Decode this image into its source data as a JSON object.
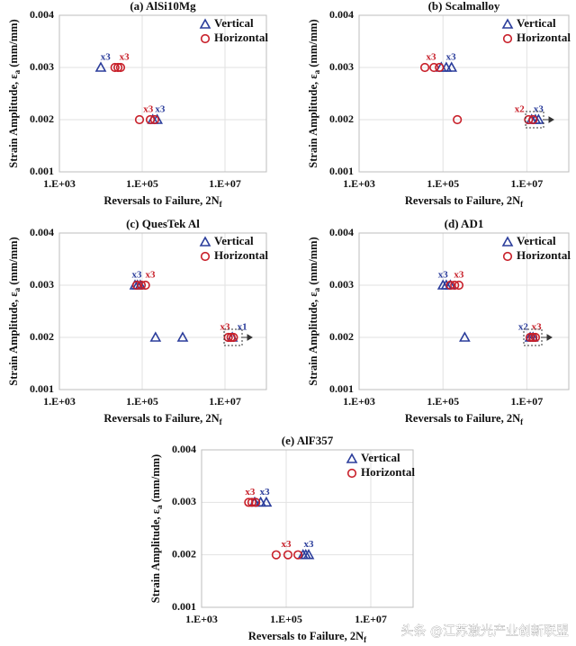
{
  "chart_data": [
    {
      "type": "scatter",
      "title": "(a) AlSi10Mg",
      "xlabel": {
        "text": "Reversals to Failure, 2N",
        "subscript": "f"
      },
      "ylabel": {
        "text": "Strain Amplitude, ε",
        "subscript": "a",
        "after": " (mm/mm)"
      },
      "xscale": "log",
      "xlim": [
        1000,
        100000000
      ],
      "xticks": [
        {
          "value": 1000,
          "label": "1.E+03"
        },
        {
          "value": 100000,
          "label": "1.E+05"
        },
        {
          "value": 10000000,
          "label": "1.E+07"
        }
      ],
      "ylim": [
        0.001,
        0.004
      ],
      "yticks": [
        0.001,
        0.002,
        0.003,
        0.004
      ],
      "grid": true,
      "legend": "upper right",
      "series": [
        {
          "name": "Vertical",
          "color": "#2b3d9b",
          "marker": "triangle",
          "x": [
            10000,
            180000,
            230000
          ],
          "values": [
            0.003,
            0.002,
            0.002
          ]
        },
        {
          "name": "Horizontal",
          "color": "#c8202a",
          "marker": "circle",
          "x": [
            22000,
            26000,
            30000,
            86000,
            157000,
            200000
          ],
          "values": [
            0.003,
            0.003,
            0.003,
            0.002,
            0.002,
            0.002
          ]
        }
      ],
      "annotations": [
        {
          "text": "x3",
          "x": 13000,
          "y": 0.003,
          "color": "#2b3d9b"
        },
        {
          "text": "x3",
          "x": 37000,
          "y": 0.003,
          "color": "#c8202a"
        },
        {
          "text": "x3",
          "x": 140000,
          "y": 0.002,
          "color": "#c8202a"
        },
        {
          "text": "x3",
          "x": 270000,
          "y": 0.002,
          "color": "#2b3d9b"
        }
      ]
    },
    {
      "type": "scatter",
      "title": "(b) Scalmalloy",
      "xlabel": {
        "text": "Reversals to Failure, 2N",
        "subscript": "f"
      },
      "ylabel": {
        "text": "Strain Amplitude, ε",
        "subscript": "a",
        "after": " (mm/mm)"
      },
      "xscale": "log",
      "xlim": [
        1000,
        100000000
      ],
      "xticks": [
        {
          "value": 1000,
          "label": "1.E+03"
        },
        {
          "value": 100000,
          "label": "1.E+05"
        },
        {
          "value": 10000000,
          "label": "1.E+07"
        }
      ],
      "ylim": [
        0.001,
        0.004
      ],
      "yticks": [
        0.001,
        0.002,
        0.003,
        0.004
      ],
      "grid": true,
      "legend": "upper right",
      "series": [
        {
          "name": "Vertical",
          "color": "#2b3d9b",
          "marker": "triangle",
          "x": [
            91000,
            120000,
            160000,
            13000000,
            16000000,
            19000000
          ],
          "values": [
            0.003,
            0.003,
            0.003,
            0.002,
            0.002,
            0.002
          ]
        },
        {
          "name": "Horizontal",
          "color": "#c8202a",
          "marker": "circle",
          "x": [
            37000,
            61000,
            82000,
            220000,
            11000000,
            14000000
          ],
          "values": [
            0.003,
            0.003,
            0.003,
            0.002,
            0.002,
            0.002
          ]
        }
      ],
      "annotations": [
        {
          "text": "x3",
          "x": 52000,
          "y": 0.003,
          "color": "#c8202a"
        },
        {
          "text": "x3",
          "x": 155000,
          "y": 0.003,
          "color": "#2b3d9b"
        },
        {
          "text": "x2",
          "x": 6700000,
          "y": 0.002,
          "color": "#c8202a"
        },
        {
          "text": "x3",
          "x": 19000000,
          "y": 0.002,
          "color": "#2b3d9b"
        }
      ]
    },
    {
      "type": "scatter",
      "title": "(c) QuesTek Al",
      "xlabel": {
        "text": "Reversals to Failure, 2N",
        "subscript": "f"
      },
      "ylabel": {
        "text": "Strain Amplitude, ε",
        "subscript": "a",
        "after": " (mm/mm)"
      },
      "xscale": "log",
      "xlim": [
        1000,
        100000000
      ],
      "xticks": [
        {
          "value": 1000,
          "label": "1.E+03"
        },
        {
          "value": 100000,
          "label": "1.E+05"
        },
        {
          "value": 10000000,
          "label": "1.E+07"
        }
      ],
      "ylim": [
        0.001,
        0.004
      ],
      "yticks": [
        0.001,
        0.002,
        0.003,
        0.004
      ],
      "grid": true,
      "legend": "upper right",
      "series": [
        {
          "name": "Vertical",
          "color": "#2b3d9b",
          "marker": "triangle",
          "x": [
            67000,
            77000,
            90000,
            210000,
            950000,
            15000000
          ],
          "values": [
            0.003,
            0.003,
            0.003,
            0.002,
            0.002,
            0.002
          ]
        },
        {
          "name": "Horizontal",
          "color": "#c8202a",
          "marker": "circle",
          "x": [
            74000,
            95000,
            120000,
            12000000,
            14000000,
            16000000
          ],
          "values": [
            0.003,
            0.003,
            0.003,
            0.002,
            0.002,
            0.002
          ]
        }
      ],
      "annotations": [
        {
          "text": "x3",
          "x": 74000,
          "y": 0.003,
          "color": "#2b3d9b"
        },
        {
          "text": "x3",
          "x": 157000,
          "y": 0.003,
          "color": "#c8202a"
        },
        {
          "text": "x3",
          "x": 10000000,
          "y": 0.002,
          "color": "#c8202a"
        },
        {
          "text": "x1",
          "x": 26000000,
          "y": 0.002,
          "color": "#2b3d9b"
        }
      ]
    },
    {
      "type": "scatter",
      "title": "(d) AD1",
      "xlabel": {
        "text": "Reversals to Failure, 2N",
        "subscript": "f"
      },
      "ylabel": {
        "text": "Strain Amplitude, ε",
        "subscript": "a",
        "after": " (mm/mm)"
      },
      "xscale": "log",
      "xlim": [
        1000,
        100000000
      ],
      "xticks": [
        {
          "value": 1000,
          "label": "1.E+03"
        },
        {
          "value": 100000,
          "label": "1.E+05"
        },
        {
          "value": 10000000,
          "label": "1.E+07"
        }
      ],
      "ylim": [
        0.001,
        0.004
      ],
      "yticks": [
        0.001,
        0.002,
        0.003,
        0.004
      ],
      "grid": true,
      "legend": "upper right",
      "series": [
        {
          "name": "Vertical",
          "color": "#2b3d9b",
          "marker": "triangle",
          "x": [
            100000,
            120000,
            150000,
            330000,
            12000000,
            14000000
          ],
          "values": [
            0.003,
            0.003,
            0.003,
            0.002,
            0.002,
            0.002
          ]
        },
        {
          "name": "Horizontal",
          "color": "#c8202a",
          "marker": "circle",
          "x": [
            150000,
            190000,
            240000,
            12000000,
            14000000,
            16000000
          ],
          "values": [
            0.003,
            0.003,
            0.003,
            0.002,
            0.002,
            0.002
          ]
        }
      ],
      "annotations": [
        {
          "text": "x3",
          "x": 100000,
          "y": 0.003,
          "color": "#2b3d9b"
        },
        {
          "text": "x3",
          "x": 240000,
          "y": 0.003,
          "color": "#c8202a"
        },
        {
          "text": "x2",
          "x": 8200000,
          "y": 0.002,
          "color": "#2b3d9b"
        },
        {
          "text": "x3",
          "x": 17000000,
          "y": 0.002,
          "color": "#c8202a"
        }
      ]
    },
    {
      "type": "scatter",
      "title": "(e) AlF357",
      "xlabel": {
        "text": "Reversals to Failure, 2N",
        "subscript": "f"
      },
      "ylabel": {
        "text": "Strain Amplitude, ε",
        "subscript": "a",
        "after": " (mm/mm)"
      },
      "xscale": "log",
      "xlim": [
        1000,
        100000000
      ],
      "xticks": [
        {
          "value": 1000,
          "label": "1.E+03"
        },
        {
          "value": 100000,
          "label": "1.E+05"
        },
        {
          "value": 10000000,
          "label": "1.E+07"
        }
      ],
      "ylim": [
        0.001,
        0.004
      ],
      "yticks": [
        0.001,
        0.002,
        0.003,
        0.004
      ],
      "grid": true,
      "legend": "upper right",
      "series": [
        {
          "name": "Vertical",
          "color": "#2b3d9b",
          "marker": "triangle",
          "x": [
            18000,
            25000,
            34000,
            250000,
            290000,
            340000
          ],
          "values": [
            0.003,
            0.003,
            0.003,
            0.002,
            0.002,
            0.002
          ]
        },
        {
          "name": "Horizontal",
          "color": "#c8202a",
          "marker": "circle",
          "x": [
            13000,
            15500,
            19000,
            58000,
            110000,
            190000
          ],
          "values": [
            0.003,
            0.003,
            0.003,
            0.002,
            0.002,
            0.002
          ]
        }
      ],
      "annotations": [
        {
          "text": "x3",
          "x": 14000,
          "y": 0.003,
          "color": "#c8202a"
        },
        {
          "text": "x3",
          "x": 31000,
          "y": 0.003,
          "color": "#2b3d9b"
        },
        {
          "text": "x3",
          "x": 100000,
          "y": 0.002,
          "color": "#c8202a"
        },
        {
          "text": "x3",
          "x": 340000,
          "y": 0.002,
          "color": "#2b3d9b"
        }
      ]
    }
  ],
  "watermark": "头条 @江苏激光产业创新联盟"
}
